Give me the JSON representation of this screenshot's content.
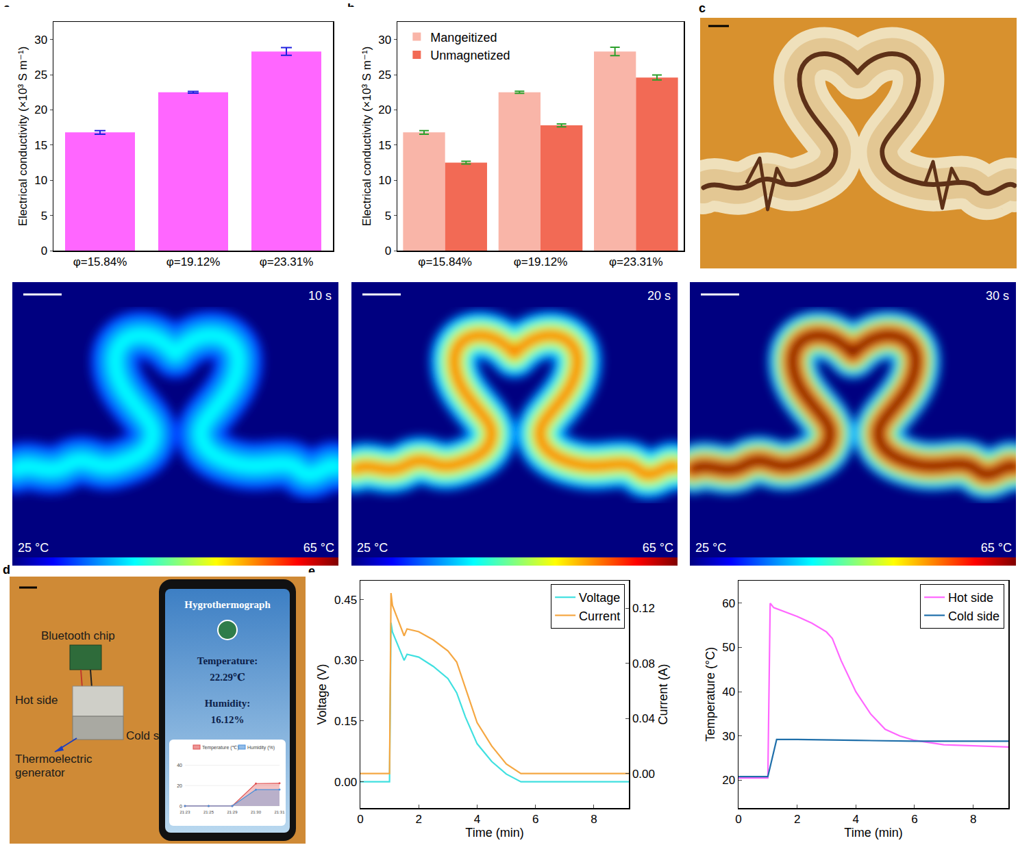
{
  "chart_data": [
    {
      "panel": "a",
      "type": "bar",
      "categories": [
        "φ=15.84%",
        "φ=19.12%",
        "φ=23.31%"
      ],
      "values": [
        16.8,
        22.5,
        28.3
      ],
      "errors": [
        0.25,
        0.12,
        0.55
      ],
      "color": "#ff66ff",
      "y_label": "Electrical conductivity (×10³ S m⁻¹)",
      "ylim": [
        0,
        32.5
      ],
      "yticks": [
        0,
        5,
        10,
        15,
        20,
        25,
        30
      ]
    },
    {
      "panel": "b",
      "type": "bar",
      "categories": [
        "φ=15.84%",
        "φ=19.12%",
        "φ=23.31%"
      ],
      "series": [
        {
          "name": "Mangeitized",
          "color": "#f9b5a8",
          "values": [
            16.8,
            22.5,
            28.3
          ],
          "errors": [
            0.25,
            0.15,
            0.6
          ]
        },
        {
          "name": "Unmagnetized",
          "color": "#f26a55",
          "values": [
            12.5,
            17.8,
            24.6
          ],
          "errors": [
            0.2,
            0.2,
            0.35
          ]
        }
      ],
      "y_label": "Electrical conductivity (×10³ S m⁻¹)",
      "ylim": [
        0,
        32.5
      ],
      "yticks": [
        0,
        5,
        10,
        15,
        20,
        25,
        30
      ],
      "legend": "top-left"
    },
    {
      "panel": "e",
      "type": "line",
      "x_label": "Time (min)",
      "y_label": "Voltage (V)",
      "y2_label": "Current (A)",
      "xlim": [
        0,
        9.2
      ],
      "xticks": [
        0,
        2,
        4,
        6,
        8
      ],
      "ylim": [
        -0.065,
        0.497
      ],
      "yticks": [
        {
          "value": 0,
          "label": "0.00"
        },
        {
          "value": 0.15,
          "label": "0.15"
        },
        {
          "value": 0.3,
          "label": "0.30"
        },
        {
          "value": 0.45,
          "label": "0.45"
        }
      ],
      "y2lim": [
        -0.025,
        0.14
      ],
      "y2ticks": [
        {
          "value": 0,
          "label": "0.00"
        },
        {
          "value": 0.04,
          "label": "0.04"
        },
        {
          "value": 0.08,
          "label": "0.08"
        },
        {
          "value": 0.12,
          "label": "0.12"
        }
      ],
      "legend": "top-right",
      "series": [
        {
          "name": "Voltage",
          "color": "#40e0e0",
          "x": [
            0,
            1.0,
            1.02,
            1.05,
            1.1,
            1.5,
            1.6,
            2.0,
            2.5,
            3.0,
            3.3,
            3.6,
            4.0,
            4.5,
            5.0,
            5.5,
            9.2
          ],
          "values": [
            0,
            0,
            0.16,
            0.393,
            0.37,
            0.3,
            0.315,
            0.308,
            0.285,
            0.255,
            0.22,
            0.16,
            0.094,
            0.05,
            0.019,
            0,
            0
          ]
        },
        {
          "name": "Current",
          "color": "#f5a742",
          "axis": "y2",
          "x": [
            0,
            1.0,
            1.02,
            1.05,
            1.1,
            1.5,
            1.6,
            2.0,
            2.5,
            3.0,
            3.3,
            3.6,
            4.0,
            4.5,
            5.0,
            5.5,
            9.2
          ],
          "values": [
            0,
            0,
            0.05,
            0.131,
            0.122,
            0.1,
            0.105,
            0.103,
            0.097,
            0.089,
            0.081,
            0.062,
            0.037,
            0.02,
            0.007,
            0,
            0
          ]
        }
      ]
    },
    {
      "type": "line",
      "x_label": "Time (min)",
      "y_label": "Temperature (°C)",
      "xlim": [
        0,
        9.2
      ],
      "xticks": [
        0,
        2,
        4,
        6,
        8
      ],
      "ylim": [
        13.7,
        65.1
      ],
      "yticks": [
        20,
        30,
        40,
        50,
        60
      ],
      "legend": "top-right",
      "series": [
        {
          "name": "Hot side",
          "color": "#ff66ff",
          "x": [
            0,
            1.0,
            1.08,
            1.2,
            2.0,
            2.5,
            3.0,
            3.2,
            3.5,
            4.0,
            4.5,
            5.0,
            5.5,
            6.0,
            7.0,
            8.0,
            9.2
          ],
          "values": [
            20.5,
            20.5,
            60,
            59,
            57,
            55.5,
            53.5,
            52,
            47,
            40,
            35,
            31.5,
            30,
            29,
            28,
            27.8,
            27.5
          ]
        },
        {
          "name": "Cold side",
          "color": "#1f6faa",
          "x": [
            0,
            1.0,
            1.3,
            2.0,
            4.0,
            6.0,
            9.2
          ],
          "values": [
            20.8,
            20.8,
            29.2,
            29.2,
            29,
            28.8,
            28.8
          ]
        }
      ]
    }
  ],
  "images": {
    "photo_c": {
      "panel": "c"
    },
    "thermal_maps": {
      "colorbar": {
        "range": [
          25,
          65
        ],
        "ticks": [
          {
            "value": 25,
            "label": "25 °C"
          },
          {
            "value": 65,
            "label": "65 °C"
          }
        ]
      },
      "frames": [
        {
          "time": "10 s",
          "peak_temperature": 40
        },
        {
          "time": "20 s",
          "peak_temperature": 55
        },
        {
          "time": "30 s",
          "peak_temperature": 65
        }
      ]
    },
    "photo_d": {
      "panel": "d",
      "labels": {
        "chip": "Bluetooth chip",
        "hot": "Hot side",
        "cold": "Cold side",
        "generator": "Thermoelectric generator"
      },
      "phone": {
        "title": "Hygrothermograph",
        "temperature_label": "Temperature:",
        "temperature": "22.29℃",
        "humidity_label": "Humidity:",
        "humidity": "16.12%",
        "chart": {
          "x": [
            "21:23",
            "21:25",
            "21:29",
            "21:30",
            "21:31"
          ],
          "series": [
            {
              "name": "Temperature (℃)",
              "color": "#e05050",
              "values": [
                0,
                0,
                0,
                22,
                22.3
              ]
            },
            {
              "name": "Humidity (%)",
              "color": "#4a90d9",
              "values": [
                0,
                0,
                0,
                16,
                16.1
              ]
            }
          ],
          "ylim": [
            0,
            45
          ],
          "yticks": [
            0,
            20,
            40
          ]
        }
      }
    }
  }
}
